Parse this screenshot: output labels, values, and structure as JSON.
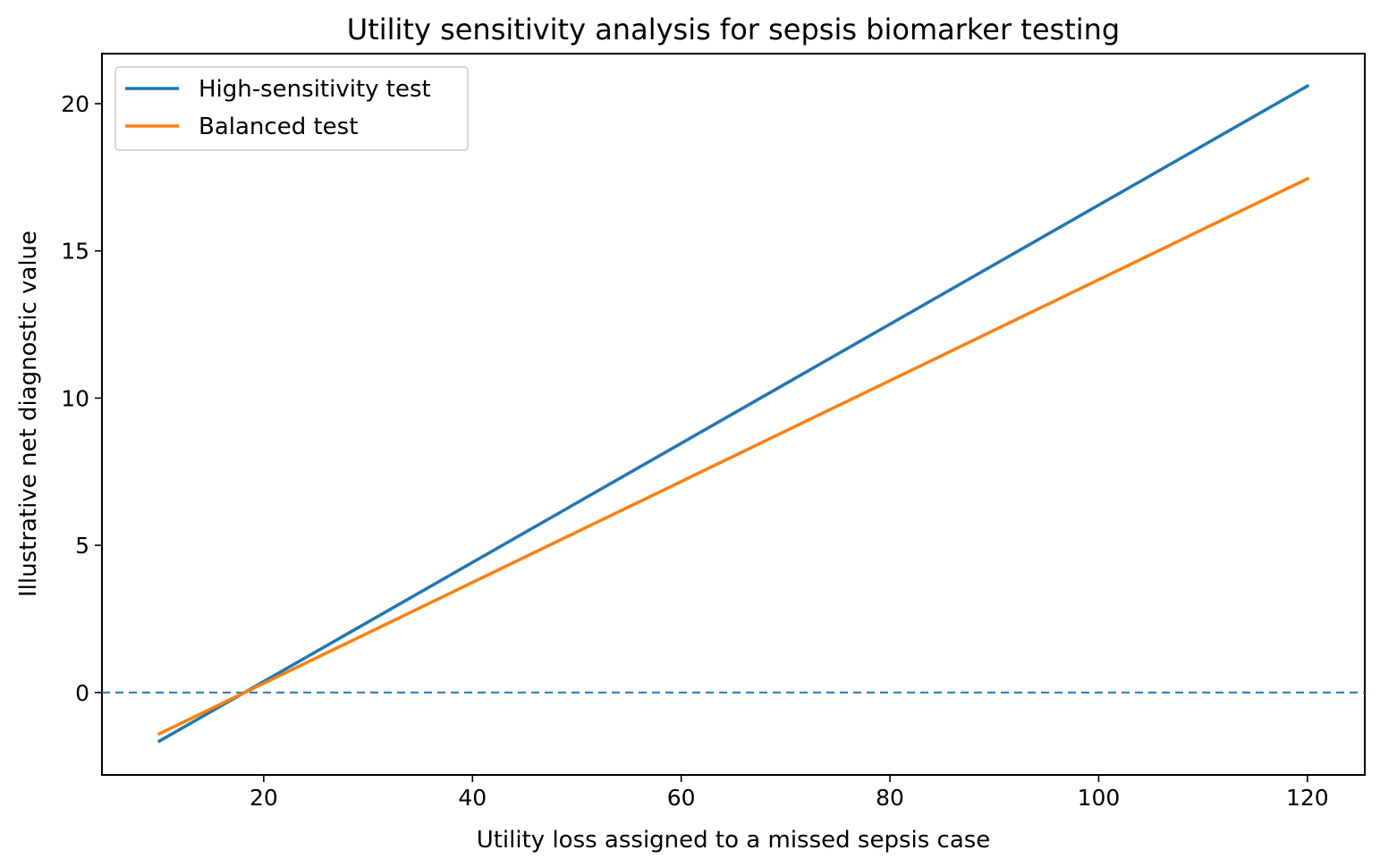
{
  "chart_data": {
    "type": "line",
    "title": "Utility sensitivity analysis for sepsis biomarker testing",
    "xlabel": "Utility loss assigned to a missed sepsis case",
    "ylabel": "Illustrative net diagnostic value",
    "xlim": [
      4.5,
      125.5
    ],
    "ylim": [
      -2.8,
      21.7
    ],
    "xticks": [
      20,
      40,
      60,
      80,
      100,
      120
    ],
    "yticks": [
      0,
      5,
      10,
      15,
      20
    ],
    "grid": false,
    "legend_position": "top-left",
    "reference_line": {
      "y": 0,
      "style": "dashed",
      "color": "#1f77b4"
    },
    "series": [
      {
        "name": "High-sensitivity test",
        "color": "#1f77b4",
        "x": [
          10,
          120
        ],
        "y": [
          -1.65,
          20.6
        ]
      },
      {
        "name": "Balanced test",
        "color": "#ff7f0e",
        "x": [
          10,
          120
        ],
        "y": [
          -1.4,
          17.45
        ]
      }
    ]
  }
}
